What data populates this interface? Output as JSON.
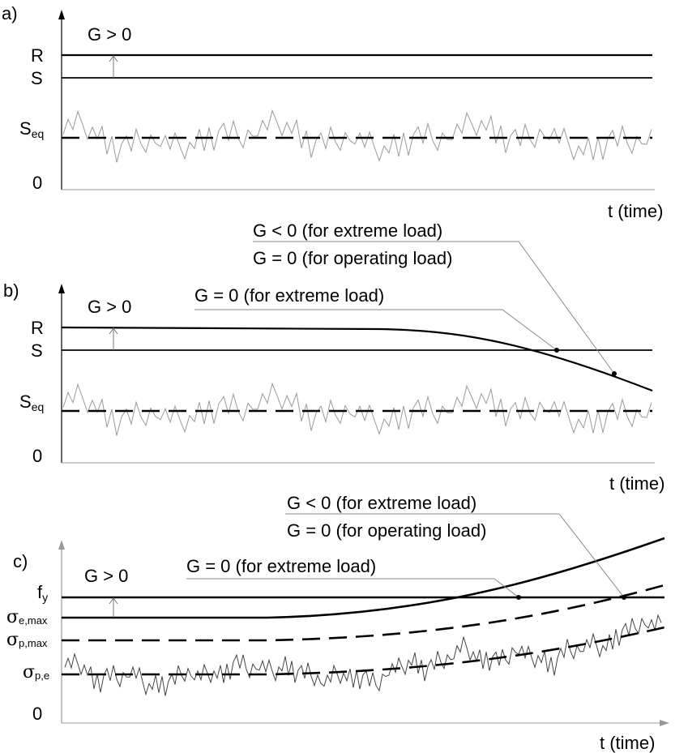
{
  "panels": {
    "a": {
      "label": "a)",
      "y_labels": {
        "R": "R",
        "S": "S",
        "Seq_main": "S",
        "Seq_sub": "eq",
        "zero": "0"
      },
      "margin_label": "G > 0",
      "x_label": "t (time)"
    },
    "b": {
      "label": "b)",
      "y_labels": {
        "R": "R",
        "S": "S",
        "Seq_main": "S",
        "Seq_sub": "eq",
        "zero": "0"
      },
      "margin_label": "G > 0",
      "x_label": "t (time)",
      "annotations": {
        "extreme_zero": "G = 0 (for extreme load)",
        "extreme_neg": "G < 0 (for extreme load)",
        "operating_zero": "G = 0 (for operating load)"
      }
    },
    "c": {
      "label": "c)",
      "y_labels": {
        "fy_main": "f",
        "fy_sub": "y",
        "sem_main": "σ",
        "sem_sub": "e,max",
        "spm_main": "σ",
        "spm_sub": "p,max",
        "spe_main": "σ",
        "spe_sub": "p,e",
        "zero": "0"
      },
      "margin_label": "G > 0",
      "x_label": "t (time)",
      "annotations": {
        "extreme_zero": "G = 0 (for extreme load)",
        "extreme_neg": "G < 0 (for extreme load)",
        "operating_zero": "G = 0 (for operating load)"
      }
    }
  },
  "colors": {
    "ink": "#000000",
    "noise": "#9a9a9a",
    "noise_c": "#444444"
  }
}
